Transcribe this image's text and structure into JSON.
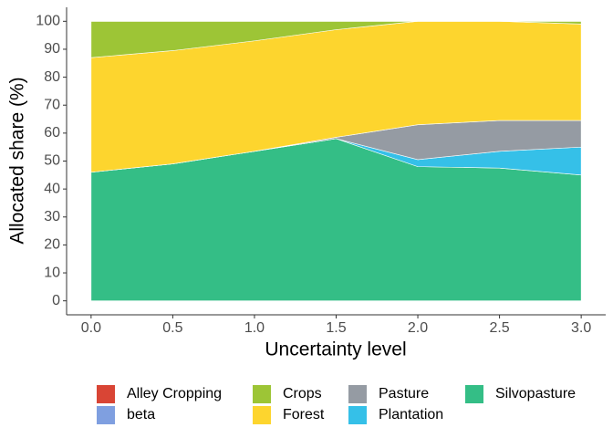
{
  "chart_data": {
    "type": "area",
    "stacked": true,
    "xlabel": "Uncertainty level",
    "ylabel": "Allocated share (%)",
    "x": [
      0,
      0.5,
      1,
      1.5,
      2,
      2.5,
      3
    ],
    "series": [
      {
        "name": "Alley Cropping",
        "color": "#d94535",
        "values": [
          0,
          0,
          0,
          0,
          0,
          0,
          0
        ]
      },
      {
        "name": "beta",
        "color": "#7f9fe0",
        "values": [
          0,
          0,
          0,
          0,
          0,
          0,
          0
        ]
      },
      {
        "name": "Crops",
        "color": "#9dc536",
        "values": [
          13,
          10.5,
          7,
          3,
          0,
          0,
          1
        ]
      },
      {
        "name": "Forest",
        "color": "#fdd52e",
        "values": [
          41,
          40.5,
          39.5,
          38.5,
          37,
          35.5,
          34.5
        ]
      },
      {
        "name": "Pasture",
        "color": "#959ba3",
        "values": [
          0,
          0,
          0,
          0.5,
          12.5,
          11,
          9.5
        ]
      },
      {
        "name": "Plantation",
        "color": "#35c0e8",
        "values": [
          0,
          0,
          0,
          0,
          2.5,
          6,
          10
        ]
      },
      {
        "name": "Silvopasture",
        "color": "#34be86",
        "values": [
          46,
          49,
          53.5,
          58,
          48,
          47.5,
          45
        ]
      }
    ],
    "xlim": [
      -0.15,
      3.15
    ],
    "xticks": [
      {
        "value": 0,
        "label": "0.0"
      },
      0.5,
      {
        "value": 1,
        "label": "1.0"
      },
      1.5,
      {
        "value": 2,
        "label": "2.0"
      },
      2.5,
      {
        "value": 3,
        "label": "3.0"
      }
    ],
    "ylim": [
      -5,
      105
    ],
    "yticks": [
      0,
      10,
      20,
      30,
      40,
      50,
      60,
      70,
      80,
      90,
      100
    ],
    "grid": false,
    "legend_position": "bottom"
  }
}
